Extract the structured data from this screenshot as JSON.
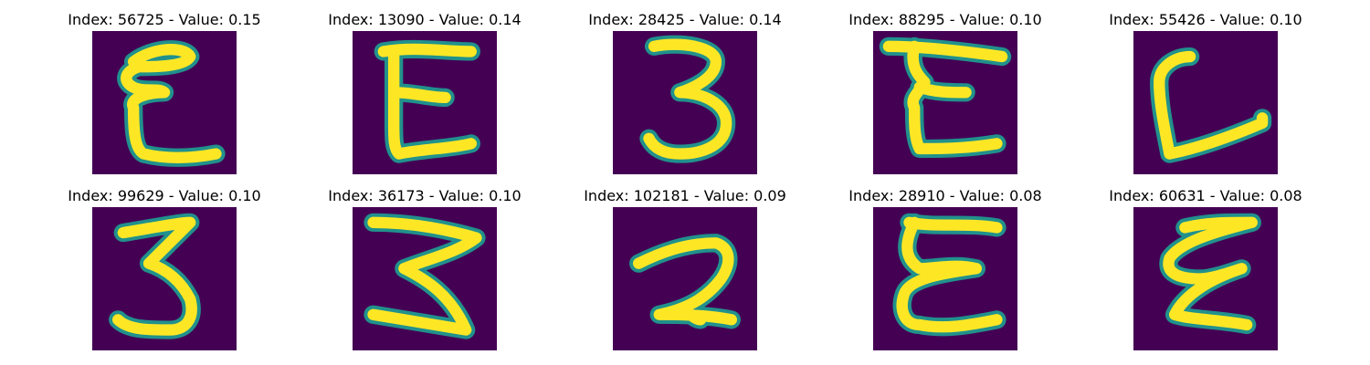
{
  "colors": {
    "background": "#440154",
    "stroke_edge": "#21918c",
    "stroke_core": "#fde725"
  },
  "panels": [
    {
      "title": "Index: 56725 - Value: 0.15",
      "glyph": "epsilon"
    },
    {
      "title": "Index: 13090 - Value: 0.14",
      "glyph": "E"
    },
    {
      "title": "Index: 28425 - Value: 0.14",
      "glyph": "3"
    },
    {
      "title": "Index: 88295 - Value: 0.10",
      "glyph": "E"
    },
    {
      "title": "Index: 55426 - Value: 0.10",
      "glyph": "L"
    },
    {
      "title": "Index: 99629 - Value: 0.10",
      "glyph": "3"
    },
    {
      "title": "Index: 36173 - Value: 0.10",
      "glyph": "3"
    },
    {
      "title": "Index: 102181 - Value: 0.09",
      "glyph": "2"
    },
    {
      "title": "Index: 28910 - Value: 0.08",
      "glyph": "epsilon"
    },
    {
      "title": "Index: 60631 - Value: 0.08",
      "glyph": "epsilon"
    }
  ]
}
